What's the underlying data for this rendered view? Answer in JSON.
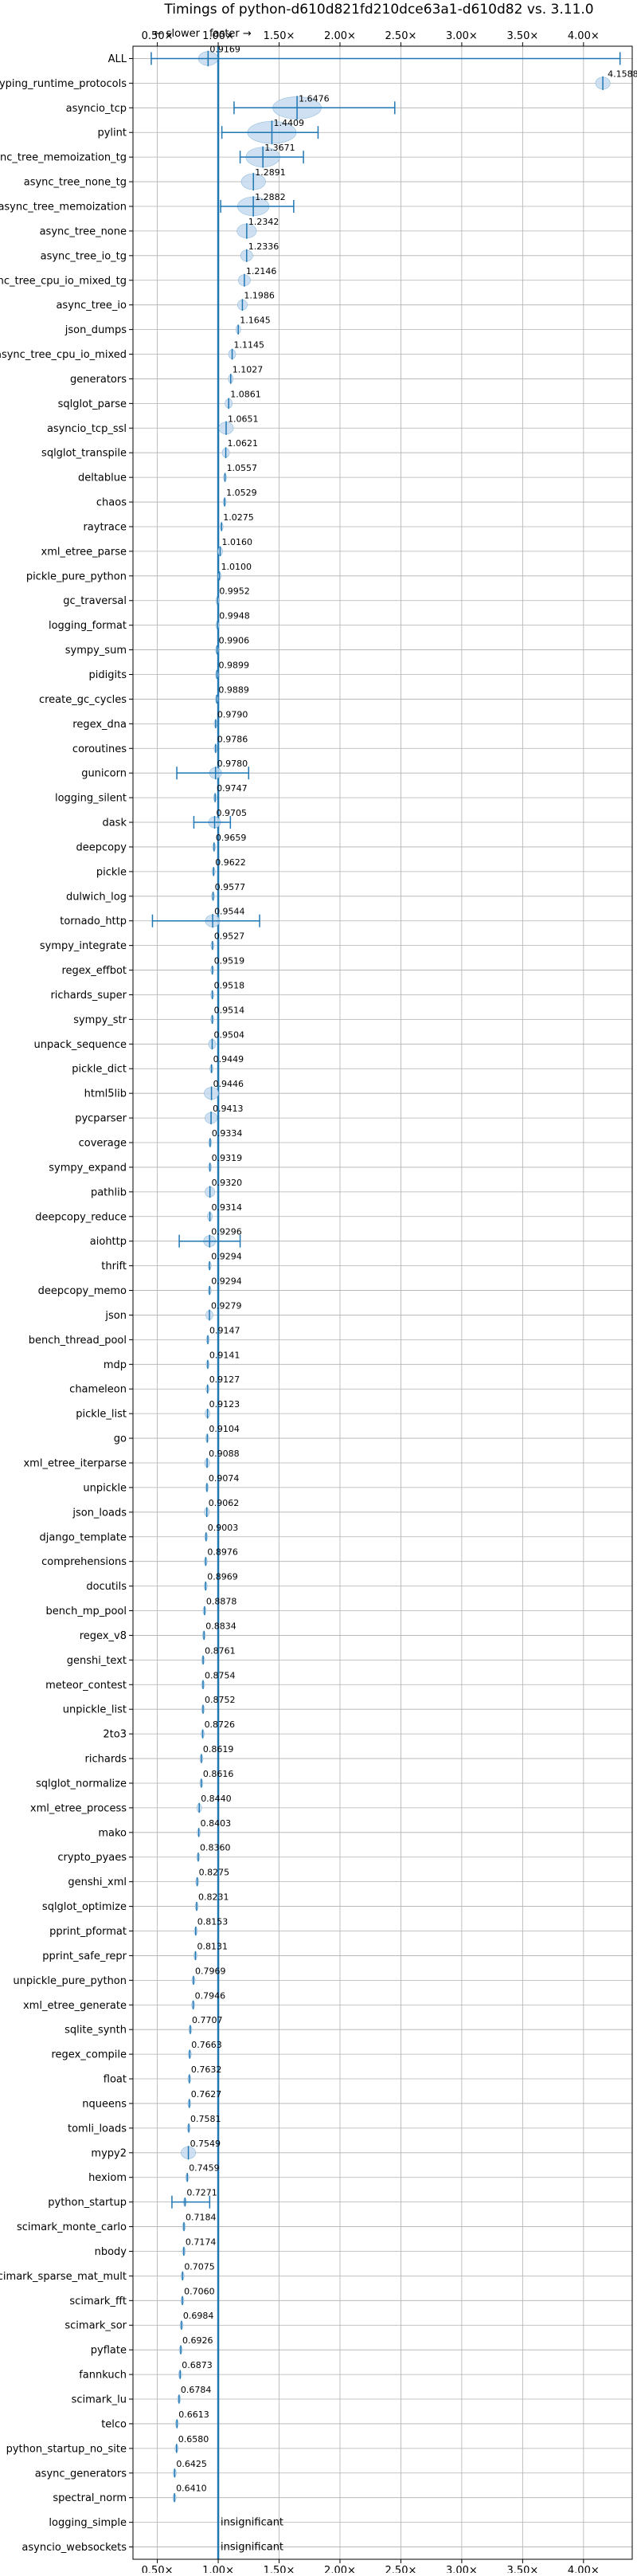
{
  "chart_data": {
    "type": "violin",
    "title": "Timings of python-d610d821fd210dce63a1-d610d82 vs. 3.11.0",
    "direction_labels": {
      "slower": "← slower",
      "faster": "faster →"
    },
    "xlim": [
      0.3,
      4.4
    ],
    "x_ticks": [
      0.5,
      1.0,
      1.5,
      2.0,
      2.5,
      3.0,
      3.5,
      4.0
    ],
    "x_tick_labels": [
      "0.50×",
      "1.00×",
      "1.50×",
      "2.00×",
      "2.50×",
      "3.00×",
      "3.50×",
      "4.00×"
    ],
    "grid": true,
    "categories": [
      "ALL",
      "typing_runtime_protocols",
      "asyncio_tcp",
      "pylint",
      "async_tree_memoization_tg",
      "async_tree_none_tg",
      "async_tree_memoization",
      "async_tree_none",
      "async_tree_io_tg",
      "async_tree_cpu_io_mixed_tg",
      "async_tree_io",
      "json_dumps",
      "async_tree_cpu_io_mixed",
      "generators",
      "sqlglot_parse",
      "asyncio_tcp_ssl",
      "sqlglot_transpile",
      "deltablue",
      "chaos",
      "raytrace",
      "xml_etree_parse",
      "pickle_pure_python",
      "gc_traversal",
      "logging_format",
      "sympy_sum",
      "pidigits",
      "create_gc_cycles",
      "regex_dna",
      "coroutines",
      "gunicorn",
      "logging_silent",
      "dask",
      "deepcopy",
      "pickle",
      "dulwich_log",
      "tornado_http",
      "sympy_integrate",
      "regex_effbot",
      "richards_super",
      "sympy_str",
      "unpack_sequence",
      "pickle_dict",
      "html5lib",
      "pycparser",
      "coverage",
      "sympy_expand",
      "pathlib",
      "deepcopy_reduce",
      "aiohttp",
      "thrift",
      "deepcopy_memo",
      "json",
      "bench_thread_pool",
      "mdp",
      "chameleon",
      "pickle_list",
      "go",
      "xml_etree_iterparse",
      "unpickle",
      "json_loads",
      "django_template",
      "comprehensions",
      "docutils",
      "bench_mp_pool",
      "regex_v8",
      "genshi_text",
      "meteor_contest",
      "unpickle_list",
      "2to3",
      "richards",
      "sqlglot_normalize",
      "xml_etree_process",
      "mako",
      "crypto_pyaes",
      "genshi_xml",
      "sqlglot_optimize",
      "pprint_pformat",
      "pprint_safe_repr",
      "unpickle_pure_python",
      "xml_etree_generate",
      "sqlite_synth",
      "regex_compile",
      "float",
      "nqueens",
      "tomli_loads",
      "mypy2",
      "hexiom",
      "python_startup",
      "scimark_monte_carlo",
      "nbody",
      "scimark_sparse_mat_mult",
      "scimark_fft",
      "scimark_sor",
      "pyflate",
      "fannkuch",
      "scimark_lu",
      "telco",
      "python_startup_no_site",
      "async_generators",
      "spectral_norm",
      "logging_simple",
      "asyncio_websockets"
    ],
    "values": [
      0.9169,
      4.1588,
      1.6476,
      1.4409,
      1.3671,
      1.2891,
      1.2882,
      1.2342,
      1.2336,
      1.2146,
      1.1986,
      1.1645,
      1.1145,
      1.1027,
      1.0861,
      1.0651,
      1.0621,
      1.0557,
      1.0529,
      1.0275,
      1.016,
      1.01,
      0.9952,
      0.9948,
      0.9906,
      0.9899,
      0.9889,
      0.979,
      0.9786,
      0.978,
      0.9747,
      0.9705,
      0.9659,
      0.9622,
      0.9577,
      0.9544,
      0.9527,
      0.9519,
      0.9518,
      0.9514,
      0.9504,
      0.9449,
      0.9446,
      0.9413,
      0.9334,
      0.9319,
      0.932,
      0.9314,
      0.9296,
      0.9294,
      0.9294,
      0.9279,
      0.9147,
      0.9141,
      0.9127,
      0.9123,
      0.9104,
      0.9088,
      0.9074,
      0.9062,
      0.9003,
      0.8976,
      0.8969,
      0.8878,
      0.8834,
      0.8761,
      0.8754,
      0.8752,
      0.8726,
      0.8619,
      0.8616,
      0.844,
      0.8403,
      0.836,
      0.8275,
      0.8231,
      0.8153,
      0.8131,
      0.7969,
      0.7946,
      0.7707,
      0.7663,
      0.7632,
      0.7627,
      0.7581,
      0.7549,
      0.7459,
      0.7271,
      0.7184,
      0.7174,
      0.7075,
      0.706,
      0.6984,
      0.6926,
      0.6873,
      0.6784,
      0.6613,
      0.658,
      0.6425,
      0.641,
      null,
      null
    ],
    "value_labels": [
      "0.9169",
      "4.1588",
      "1.6476",
      "1.4409",
      "1.3671",
      "1.2891",
      "1.2882",
      "1.2342",
      "1.2336",
      "1.2146",
      "1.1986",
      "1.1645",
      "1.1145",
      "1.1027",
      "1.0861",
      "1.0651",
      "1.0621",
      "1.0557",
      "1.0529",
      "1.0275",
      "1.0160",
      "1.0100",
      "0.9952",
      "0.9948",
      "0.9906",
      "0.9899",
      "0.9889",
      "0.9790",
      "0.9786",
      "0.9780",
      "0.9747",
      "0.9705",
      "0.9659",
      "0.9622",
      "0.9577",
      "0.9544",
      "0.9527",
      "0.9519",
      "0.9518",
      "0.9514",
      "0.9504",
      "0.9449",
      "0.9446",
      "0.9413",
      "0.9334",
      "0.9319",
      "0.9320",
      "0.9314",
      "0.9296",
      "0.9294",
      "0.9294",
      "0.9279",
      "0.9147",
      "0.9141",
      "0.9127",
      "0.9123",
      "0.9104",
      "0.9088",
      "0.9074",
      "0.9062",
      "0.9003",
      "0.8976",
      "0.8969",
      "0.8878",
      "0.8834",
      "0.8761",
      "0.8754",
      "0.8752",
      "0.8726",
      "0.8619",
      "0.8616",
      "0.8440",
      "0.8403",
      "0.8360",
      "0.8275",
      "0.8231",
      "0.8153",
      "0.8131",
      "0.7969",
      "0.7946",
      "0.7707",
      "0.7663",
      "0.7632",
      "0.7627",
      "0.7581",
      "0.7549",
      "0.7459",
      "0.7271",
      "0.7184",
      "0.7174",
      "0.7075",
      "0.7060",
      "0.6984",
      "0.6926",
      "0.6873",
      "0.6784",
      "0.6613",
      "0.6580",
      "0.6425",
      "0.6410",
      "insignificant",
      "insignificant"
    ],
    "spreads": [
      0.08,
      0.06,
      0.2,
      0.2,
      0.14,
      0.1,
      0.13,
      0.08,
      0.05,
      0.05,
      0.04,
      0.02,
      0.03,
      0.02,
      0.03,
      0.06,
      0.03,
      0.01,
      0.01,
      0.01,
      0.02,
      0.01,
      0.01,
      0.01,
      0.01,
      0.01,
      0.01,
      0.01,
      0.01,
      0.05,
      0.01,
      0.05,
      0.01,
      0.01,
      0.01,
      0.06,
      0.01,
      0.01,
      0.01,
      0.01,
      0.03,
      0.01,
      0.06,
      0.05,
      0.01,
      0.01,
      0.04,
      0.02,
      0.05,
      0.01,
      0.01,
      0.03,
      0.01,
      0.01,
      0.01,
      0.02,
      0.01,
      0.02,
      0.01,
      0.02,
      0.01,
      0.01,
      0.01,
      0.01,
      0.01,
      0.01,
      0.01,
      0.01,
      0.01,
      0.01,
      0.01,
      0.02,
      0.01,
      0.01,
      0.01,
      0.01,
      0.01,
      0.01,
      0.01,
      0.01,
      0.01,
      0.01,
      0.01,
      0.01,
      0.01,
      0.06,
      0.01,
      0.01,
      0.01,
      0.01,
      0.01,
      0.01,
      0.01,
      0.01,
      0.01,
      0.01,
      0.01,
      0.01,
      0.01,
      0.01,
      0,
      0
    ],
    "extrema": [
      {
        "index": 0,
        "min": 0.45,
        "max": 4.3
      },
      {
        "index": 2,
        "min": 1.13,
        "max": 2.45
      },
      {
        "index": 3,
        "min": 1.03,
        "max": 1.82
      },
      {
        "index": 4,
        "min": 1.18,
        "max": 1.7
      },
      {
        "index": 6,
        "min": 1.02,
        "max": 1.62
      },
      {
        "index": 29,
        "min": 0.66,
        "max": 1.25
      },
      {
        "index": 31,
        "min": 0.8,
        "max": 1.1
      },
      {
        "index": 35,
        "min": 0.46,
        "max": 1.34
      },
      {
        "index": 48,
        "min": 0.68,
        "max": 1.18
      },
      {
        "index": 87,
        "min": 0.62,
        "max": 0.93
      }
    ],
    "colors": {
      "violin": "#1f77b4",
      "violin_fill": "#c6dbef",
      "grid": "#b0b0b0",
      "text": "#000000"
    }
  }
}
